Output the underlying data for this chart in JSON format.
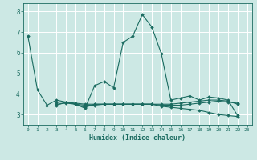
{
  "xlabel": "Humidex (Indice chaleur)",
  "background_color": "#cce8e4",
  "grid_color": "#ffffff",
  "line_color": "#1a6b60",
  "x_ticks": [
    0,
    1,
    2,
    3,
    4,
    5,
    6,
    7,
    8,
    9,
    10,
    11,
    12,
    13,
    14,
    15,
    16,
    17,
    18,
    19,
    20,
    21,
    22,
    23
  ],
  "y_ticks": [
    3,
    4,
    5,
    6,
    7,
    8
  ],
  "ylim": [
    2.5,
    8.4
  ],
  "xlim": [
    -0.5,
    23.5
  ],
  "series": [
    [
      6.8,
      4.2,
      3.45,
      3.7,
      3.6,
      3.5,
      3.3,
      4.4,
      4.6,
      4.3,
      6.5,
      6.8,
      7.85,
      7.25,
      5.95,
      3.7,
      3.8,
      3.9,
      3.7,
      3.85,
      3.8,
      3.7,
      2.95,
      null
    ],
    [
      null,
      null,
      null,
      3.45,
      3.6,
      3.5,
      3.35,
      3.5,
      3.5,
      3.5,
      3.5,
      3.5,
      3.5,
      3.5,
      3.4,
      3.35,
      3.3,
      3.25,
      3.2,
      3.1,
      3.0,
      2.95,
      2.9,
      null
    ],
    [
      null,
      null,
      null,
      3.5,
      3.55,
      3.5,
      3.45,
      3.45,
      3.5,
      3.5,
      3.5,
      3.5,
      3.5,
      3.5,
      3.45,
      3.45,
      3.45,
      3.5,
      3.55,
      3.6,
      3.65,
      3.6,
      3.55,
      null
    ],
    [
      null,
      null,
      null,
      3.6,
      3.6,
      3.55,
      3.5,
      3.5,
      3.5,
      3.5,
      3.5,
      3.5,
      3.5,
      3.5,
      3.5,
      3.5,
      3.55,
      3.6,
      3.65,
      3.7,
      3.7,
      3.65,
      3.5,
      null
    ]
  ]
}
